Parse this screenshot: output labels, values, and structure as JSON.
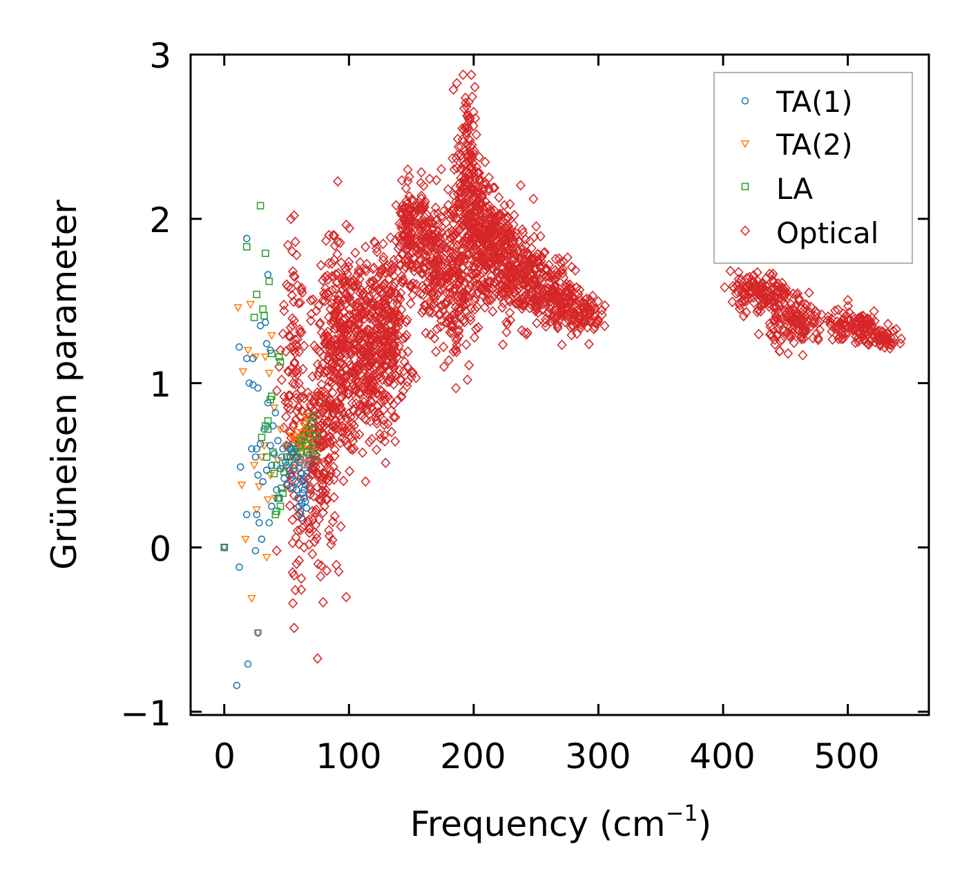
{
  "chart_data": {
    "type": "scatter",
    "title": "",
    "xlabel": "Frequency (cm",
    "xlabel_sup": "−1",
    "xlabel_close": ")",
    "ylabel": "Grüneisen parameter",
    "xlim": [
      -27,
      565
    ],
    "ylim": [
      -1.02,
      3.0
    ],
    "x_ticks": [
      0,
      100,
      200,
      300,
      400,
      500
    ],
    "y_ticks": [
      -1,
      0,
      1,
      2,
      3
    ],
    "x_tick_labels": [
      "0",
      "100",
      "200",
      "300",
      "400",
      "500"
    ],
    "y_tick_labels": [
      "−1",
      "0",
      "1",
      "2",
      "3"
    ],
    "grid": false,
    "legend_position": "top-right",
    "series": [
      {
        "name": "TA(1)",
        "marker": "circle",
        "color": "#1f77b4",
        "points": [
          [
            0,
            0
          ],
          [
            10,
            -0.84
          ],
          [
            12,
            -0.12
          ],
          [
            13,
            0.49
          ],
          [
            12,
            1.22
          ],
          [
            18,
            1.88
          ],
          [
            18,
            0.2
          ],
          [
            19,
            -0.71
          ],
          [
            18,
            1.15
          ],
          [
            20,
            1.0
          ],
          [
            22,
            0.6
          ],
          [
            23,
            0.99
          ],
          [
            23,
            1.15
          ],
          [
            25,
            0.55
          ],
          [
            25,
            -0.02
          ],
          [
            26,
            0.2
          ],
          [
            26,
            0.6
          ],
          [
            27,
            0.97
          ],
          [
            27,
            0.44
          ],
          [
            27,
            -0.52
          ],
          [
            28,
            0.15
          ],
          [
            29,
            0.63
          ],
          [
            29,
            1.35
          ],
          [
            30,
            0.05
          ],
          [
            31,
            0.4
          ],
          [
            32,
            0.72
          ],
          [
            33,
            1.37
          ],
          [
            34,
            1.24
          ],
          [
            34,
            0.47
          ],
          [
            35,
            1.66
          ],
          [
            35,
            0.88
          ],
          [
            36,
            0.15
          ],
          [
            37,
            0.62
          ],
          [
            37,
            1.2
          ],
          [
            38,
            0.25
          ],
          [
            38,
            0.5
          ],
          [
            39,
            0.74
          ],
          [
            40,
            0.57
          ],
          [
            41,
            0.82
          ],
          [
            42,
            0.35
          ],
          [
            43,
            0.65
          ],
          [
            44,
            0.3
          ],
          [
            45,
            0.48
          ],
          [
            46,
            0.55
          ],
          [
            47,
            0.6
          ],
          [
            48,
            0.42
          ],
          [
            49,
            0.52
          ],
          [
            50,
            0.38
          ],
          [
            51,
            0.62
          ],
          [
            52,
            0.47
          ],
          [
            53,
            0.55
          ],
          [
            54,
            0.44
          ],
          [
            55,
            0.58
          ],
          [
            56,
            0.5
          ],
          [
            57,
            0.4
          ],
          [
            58,
            0.35
          ],
          [
            59,
            0.3
          ],
          [
            60,
            0.25
          ],
          [
            61,
            0.22
          ],
          [
            62,
            0.27
          ],
          [
            63,
            0.33
          ],
          [
            64,
            0.3
          ],
          [
            65,
            0.38
          ],
          [
            66,
            0.45
          ],
          [
            67,
            0.5
          ],
          [
            68,
            0.56
          ],
          [
            60,
            0.48
          ],
          [
            61,
            0.52
          ],
          [
            62,
            0.45
          ],
          [
            63,
            0.4
          ],
          [
            64,
            0.35
          ],
          [
            65,
            0.28
          ],
          [
            66,
            0.24
          ],
          [
            62,
            0.18
          ],
          [
            61,
            0.42
          ],
          [
            59,
            0.55
          ],
          [
            57,
            0.6
          ],
          [
            55,
            0.36
          ],
          [
            53,
            0.6
          ],
          [
            50,
            0.5
          ]
        ]
      },
      {
        "name": "TA(2)",
        "marker": "triangle-down",
        "color": "#ff7f0e",
        "points": [
          [
            0,
            0
          ],
          [
            11,
            1.46
          ],
          [
            15,
            1.07
          ],
          [
            14,
            0.38
          ],
          [
            17,
            0.05
          ],
          [
            19,
            1.2
          ],
          [
            21,
            1.48
          ],
          [
            22,
            -0.31
          ],
          [
            24,
            0.5
          ],
          [
            25,
            1.16
          ],
          [
            26,
            0.23
          ],
          [
            27,
            -0.52
          ],
          [
            28,
            0.37
          ],
          [
            30,
            0.55
          ],
          [
            32,
            0.62
          ],
          [
            33,
            1.16
          ],
          [
            34,
            -0.06
          ],
          [
            35,
            0.29
          ],
          [
            36,
            1.06
          ],
          [
            37,
            0.44
          ],
          [
            38,
            1.29
          ],
          [
            40,
            0.85
          ],
          [
            41,
            0.3
          ],
          [
            43,
            0.53
          ],
          [
            45,
            0.72
          ],
          [
            47,
            0.48
          ],
          [
            49,
            0.61
          ],
          [
            50,
            0.62
          ],
          [
            52,
            0.55
          ],
          [
            54,
            0.68
          ],
          [
            55,
            0.66
          ],
          [
            56,
            0.5
          ],
          [
            57,
            0.6
          ],
          [
            58,
            0.64
          ],
          [
            59,
            0.7
          ],
          [
            60,
            0.6
          ],
          [
            61,
            0.66
          ],
          [
            62,
            0.7
          ],
          [
            63,
            0.62
          ],
          [
            64,
            0.75
          ],
          [
            65,
            0.8
          ],
          [
            66,
            0.68
          ],
          [
            67,
            0.6
          ],
          [
            68,
            0.72
          ],
          [
            69,
            0.65
          ],
          [
            70,
            0.6
          ],
          [
            66,
            0.56
          ],
          [
            64,
            0.5
          ],
          [
            62,
            0.58
          ],
          [
            60,
            0.62
          ]
        ]
      },
      {
        "name": "LA",
        "marker": "square",
        "color": "#2ca02c",
        "points": [
          [
            0,
            0
          ],
          [
            18,
            1.83
          ],
          [
            24,
            1.4
          ],
          [
            26,
            1.54
          ],
          [
            29,
            2.08
          ],
          [
            30,
            0.67
          ],
          [
            31,
            1.45
          ],
          [
            32,
            1.41
          ],
          [
            33,
            1.79
          ],
          [
            34,
            0.55
          ],
          [
            35,
            0.77
          ],
          [
            36,
            1.62
          ],
          [
            37,
            0.9
          ],
          [
            38,
            1.18
          ],
          [
            39,
            0.58
          ],
          [
            40,
            0.45
          ],
          [
            41,
            0.2
          ],
          [
            42,
            0.5
          ],
          [
            43,
            0.3
          ],
          [
            44,
            0.3
          ],
          [
            45,
            0.25
          ],
          [
            46,
            0.36
          ],
          [
            48,
            0.46
          ],
          [
            50,
            0.55
          ],
          [
            52,
            0.52
          ],
          [
            54,
            0.6
          ],
          [
            56,
            0.58
          ],
          [
            58,
            0.55
          ],
          [
            60,
            0.62
          ],
          [
            62,
            0.65
          ],
          [
            64,
            0.68
          ],
          [
            66,
            0.62
          ],
          [
            67,
            0.58
          ],
          [
            68,
            0.72
          ],
          [
            69,
            0.66
          ],
          [
            70,
            0.75
          ],
          [
            71,
            0.8
          ],
          [
            72,
            0.6
          ],
          [
            73,
            0.55
          ],
          [
            74,
            0.68
          ],
          [
            45,
            1.13
          ],
          [
            44,
            1.16
          ],
          [
            38,
            0.92
          ],
          [
            33,
            0.74
          ],
          [
            35,
            0.72
          ],
          [
            42,
            0.22
          ],
          [
            47,
            0.33
          ],
          [
            61,
            0.57
          ]
        ]
      },
      {
        "name": "Optical",
        "marker": "diamond",
        "color": "#d62728",
        "points": [
          [
            56,
            -0.49
          ],
          [
            55,
            -0.34
          ],
          [
            57,
            -0.26
          ],
          [
            56,
            -0.17
          ],
          [
            58,
            -0.1
          ],
          [
            60,
            -0.08
          ],
          [
            42,
            -0.02
          ],
          [
            64,
            0.0
          ],
          [
            60,
            0.02
          ],
          [
            55,
            1.68
          ],
          [
            56,
            2.02
          ],
          [
            57,
            1.86
          ],
          [
            58,
            1.78
          ],
          [
            51,
            1.84
          ],
          [
            50,
            1.6
          ],
          [
            47,
            1.3
          ],
          [
            48,
            1.44
          ],
          [
            45,
            1.2
          ],
          [
            44,
            1.1
          ],
          [
            46,
            1.02
          ]
        ],
        "clusters": [
          {
            "cx": 56,
            "cy": 0.95,
            "sx": 4,
            "sy": 0.42,
            "n": 90
          },
          {
            "cx": 70,
            "cy": 0.55,
            "sx": 8,
            "sy": 0.35,
            "n": 110
          },
          {
            "cx": 82,
            "cy": 0.85,
            "sx": 7,
            "sy": 0.45,
            "n": 160
          },
          {
            "cx": 95,
            "cy": 1.18,
            "sx": 9,
            "sy": 0.32,
            "n": 260
          },
          {
            "cx": 115,
            "cy": 1.2,
            "sx": 9,
            "sy": 0.28,
            "n": 260
          },
          {
            "cx": 133,
            "cy": 1.3,
            "sx": 8,
            "sy": 0.25,
            "n": 220
          },
          {
            "cx": 150,
            "cy": 1.92,
            "sx": 7,
            "sy": 0.14,
            "n": 160
          },
          {
            "cx": 168,
            "cy": 1.72,
            "sx": 7,
            "sy": 0.2,
            "n": 170
          },
          {
            "cx": 185,
            "cy": 1.62,
            "sx": 6,
            "sy": 0.28,
            "n": 160
          },
          {
            "cx": 196,
            "cy": 2.2,
            "sx": 5,
            "sy": 0.32,
            "n": 200
          },
          {
            "cx": 208,
            "cy": 1.88,
            "sx": 7,
            "sy": 0.2,
            "n": 220
          },
          {
            "cx": 225,
            "cy": 1.74,
            "sx": 8,
            "sy": 0.17,
            "n": 200
          },
          {
            "cx": 245,
            "cy": 1.62,
            "sx": 8,
            "sy": 0.14,
            "n": 150
          },
          {
            "cx": 270,
            "cy": 1.54,
            "sx": 8,
            "sy": 0.1,
            "n": 140
          },
          {
            "cx": 288,
            "cy": 1.42,
            "sx": 7,
            "sy": 0.06,
            "n": 80
          },
          {
            "cx": 430,
            "cy": 1.55,
            "sx": 12,
            "sy": 0.06,
            "n": 150
          },
          {
            "cx": 460,
            "cy": 1.36,
            "sx": 11,
            "sy": 0.07,
            "n": 130
          },
          {
            "cx": 505,
            "cy": 1.34,
            "sx": 12,
            "sy": 0.05,
            "n": 110
          },
          {
            "cx": 528,
            "cy": 1.28,
            "sx": 8,
            "sy": 0.03,
            "n": 50
          }
        ]
      }
    ]
  }
}
